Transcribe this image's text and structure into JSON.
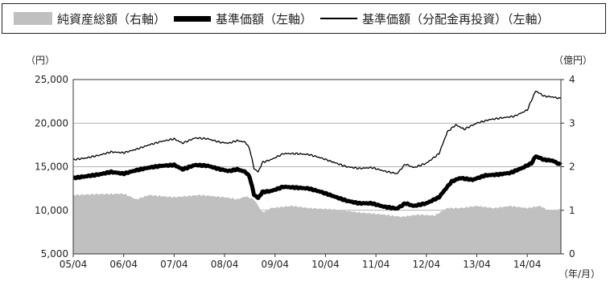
{
  "legend": {
    "area_label": "純資産総額（右軸）",
    "thick_label": "基準価額（左軸）",
    "thin_label": "基準価額（分配金再投資）（左軸）"
  },
  "chart_data": {
    "type": "line",
    "left_axis_unit": "（円）",
    "right_axis_unit": "（億円）",
    "x_axis_unit": "（年/月）",
    "ylim_left": [
      5000,
      25000
    ],
    "ylim_right": [
      0,
      4
    ],
    "left_ticks": [
      "25,000",
      "20,000",
      "15,000",
      "10,000",
      "5,000"
    ],
    "right_ticks": [
      "4",
      "3",
      "2",
      "1",
      "0"
    ],
    "x_ticks": [
      "05/04",
      "06/04",
      "07/04",
      "08/04",
      "09/04",
      "10/04",
      "11/04",
      "12/04",
      "13/04",
      "14/04"
    ],
    "x_range_months": [
      0,
      116
    ],
    "grid": true,
    "colors": {
      "area": "#c0c0c0",
      "nav": "#000000",
      "reinvest": "#000000"
    },
    "series": [
      {
        "name": "純資産総額（右軸）",
        "axis": "right",
        "style": "area",
        "points": [
          [
            0,
            1.35
          ],
          [
            6,
            1.37
          ],
          [
            12,
            1.38
          ],
          [
            15,
            1.25
          ],
          [
            18,
            1.35
          ],
          [
            24,
            1.3
          ],
          [
            30,
            1.35
          ],
          [
            36,
            1.3
          ],
          [
            39,
            1.25
          ],
          [
            41,
            1.32
          ],
          [
            43,
            1.25
          ],
          [
            45,
            0.95
          ],
          [
            47,
            1.05
          ],
          [
            52,
            1.1
          ],
          [
            56,
            1.05
          ],
          [
            62,
            1.02
          ],
          [
            68,
            0.95
          ],
          [
            74,
            0.9
          ],
          [
            78,
            0.85
          ],
          [
            82,
            0.9
          ],
          [
            86,
            0.88
          ],
          [
            89,
            1.05
          ],
          [
            92,
            1.05
          ],
          [
            96,
            1.1
          ],
          [
            100,
            1.05
          ],
          [
            104,
            1.1
          ],
          [
            108,
            1.05
          ],
          [
            111,
            1.1
          ],
          [
            113,
            1.0
          ],
          [
            116,
            1.02
          ]
        ]
      },
      {
        "name": "基準価額（左軸）",
        "axis": "left",
        "style": "thick",
        "points": [
          [
            0,
            13700
          ],
          [
            3,
            13900
          ],
          [
            6,
            14100
          ],
          [
            9,
            14400
          ],
          [
            12,
            14200
          ],
          [
            15,
            14600
          ],
          [
            18,
            14900
          ],
          [
            21,
            15100
          ],
          [
            24,
            15200
          ],
          [
            26,
            14700
          ],
          [
            29,
            15200
          ],
          [
            32,
            15100
          ],
          [
            35,
            14700
          ],
          [
            37,
            14500
          ],
          [
            39,
            14700
          ],
          [
            41,
            14400
          ],
          [
            42,
            13800
          ],
          [
            43,
            11800
          ],
          [
            44,
            11400
          ],
          [
            45,
            12100
          ],
          [
            47,
            12200
          ],
          [
            50,
            12700
          ],
          [
            53,
            12600
          ],
          [
            56,
            12500
          ],
          [
            59,
            12100
          ],
          [
            62,
            11600
          ],
          [
            65,
            11100
          ],
          [
            68,
            10800
          ],
          [
            71,
            10800
          ],
          [
            74,
            10400
          ],
          [
            77,
            10200
          ],
          [
            79,
            10800
          ],
          [
            81,
            10500
          ],
          [
            84,
            10800
          ],
          [
            87,
            11500
          ],
          [
            90,
            13300
          ],
          [
            92,
            13700
          ],
          [
            95,
            13500
          ],
          [
            98,
            14000
          ],
          [
            101,
            14100
          ],
          [
            104,
            14300
          ],
          [
            107,
            14900
          ],
          [
            109,
            15400
          ],
          [
            110,
            16200
          ],
          [
            112,
            15800
          ],
          [
            114,
            15700
          ],
          [
            116,
            15200
          ]
        ]
      },
      {
        "name": "基準価額（分配金再投資）（左軸）",
        "axis": "left",
        "style": "thin",
        "points": [
          [
            0,
            15800
          ],
          [
            3,
            16000
          ],
          [
            6,
            16300
          ],
          [
            9,
            16700
          ],
          [
            12,
            16600
          ],
          [
            15,
            17000
          ],
          [
            18,
            17500
          ],
          [
            21,
            17900
          ],
          [
            24,
            18200
          ],
          [
            26,
            17700
          ],
          [
            29,
            18300
          ],
          [
            32,
            18200
          ],
          [
            35,
            17800
          ],
          [
            37,
            17700
          ],
          [
            39,
            18000
          ],
          [
            41,
            17800
          ],
          [
            42,
            17000
          ],
          [
            43,
            14800
          ],
          [
            44,
            14400
          ],
          [
            45,
            15500
          ],
          [
            47,
            15800
          ],
          [
            50,
            16500
          ],
          [
            53,
            16500
          ],
          [
            56,
            16400
          ],
          [
            59,
            16000
          ],
          [
            62,
            15500
          ],
          [
            65,
            15000
          ],
          [
            68,
            14800
          ],
          [
            71,
            14900
          ],
          [
            74,
            14500
          ],
          [
            77,
            14200
          ],
          [
            79,
            15300
          ],
          [
            81,
            14900
          ],
          [
            84,
            15400
          ],
          [
            87,
            16500
          ],
          [
            89,
            19000
          ],
          [
            91,
            19800
          ],
          [
            93,
            19300
          ],
          [
            96,
            20000
          ],
          [
            99,
            20400
          ],
          [
            102,
            20600
          ],
          [
            105,
            20800
          ],
          [
            108,
            21500
          ],
          [
            110,
            23700
          ],
          [
            112,
            23100
          ],
          [
            114,
            23000
          ],
          [
            116,
            22800
          ]
        ]
      }
    ]
  }
}
